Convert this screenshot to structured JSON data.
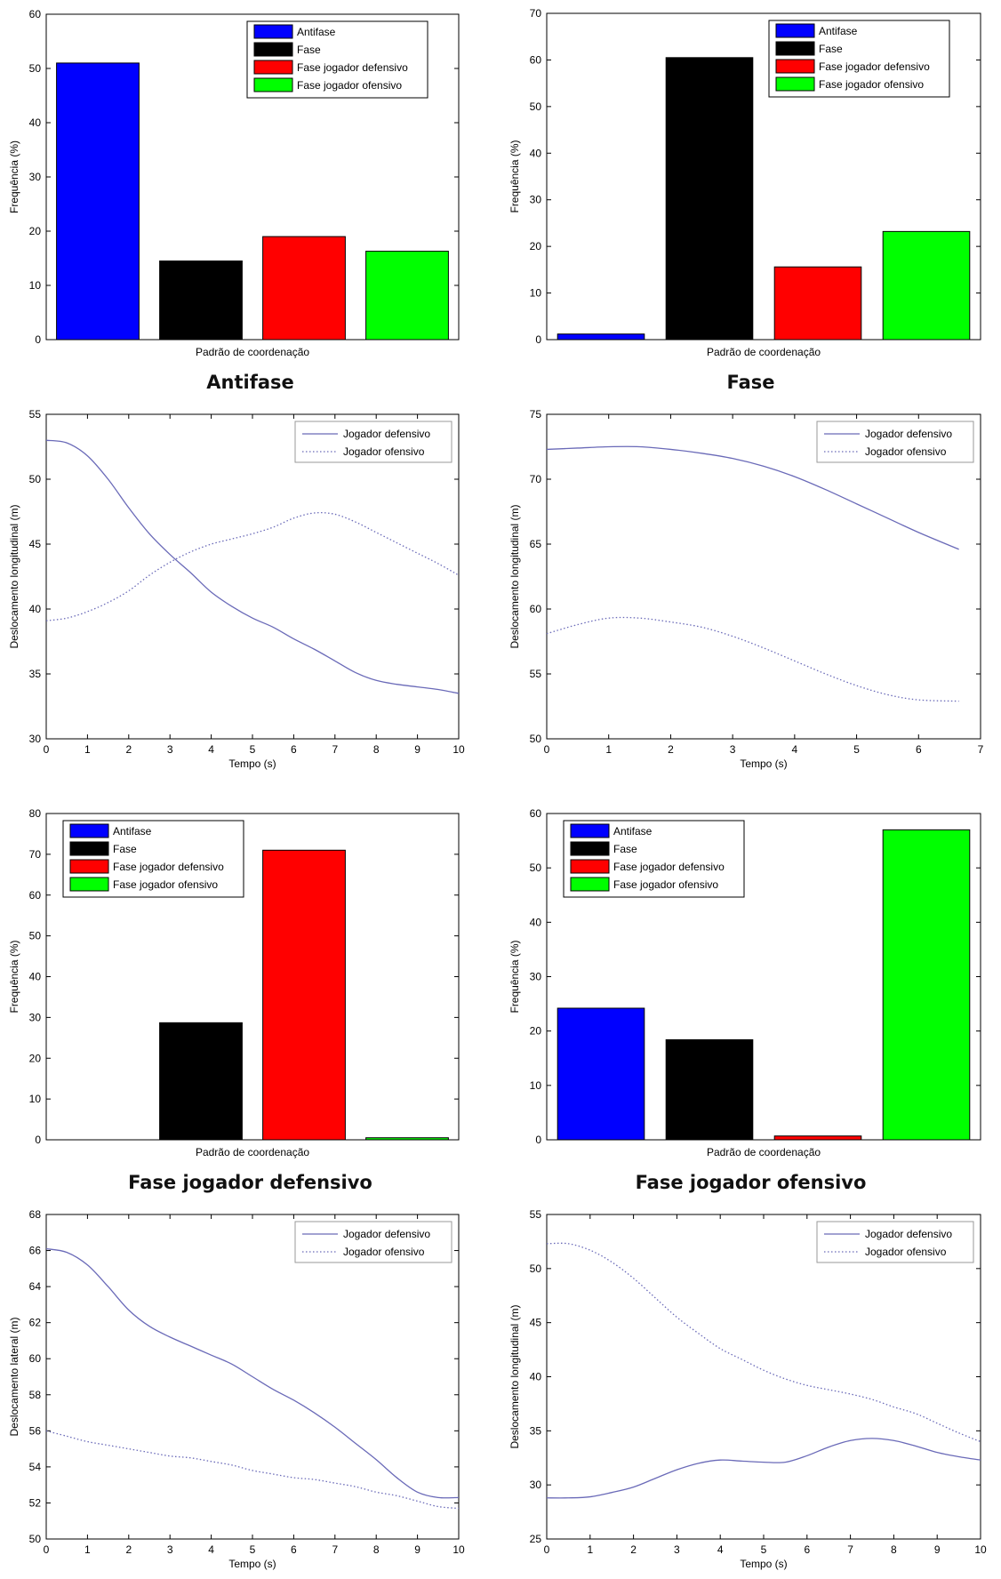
{
  "figure": {
    "captions": [
      "Antifase",
      "Fase",
      "Fase jogador defensivo",
      "Fase jogador ofensivo"
    ]
  },
  "colors": {
    "antifase": "#0000ff",
    "fase": "#000000",
    "fase_def": "#ff0000",
    "fase_ofe": "#00ff00",
    "line": "#6a6ab8",
    "axis": "#000000"
  },
  "chart_data": [
    {
      "type": "bar",
      "xlabel": "Padrão de coordenação",
      "ylabel": "Frequência (%)",
      "ylim": [
        0,
        60
      ],
      "yticks": [
        0,
        10,
        20,
        30,
        40,
        50,
        60
      ],
      "categories": [
        "Antifase",
        "Fase",
        "Fase jogador defensivo",
        "Fase jogador ofensivo"
      ],
      "values": [
        51,
        14.5,
        19,
        16.3
      ],
      "colors": [
        "#0000ff",
        "#000000",
        "#ff0000",
        "#00ff00"
      ],
      "legend": [
        "Antifase",
        "Fase",
        "Fase jogador defensivo",
        "Fase jogador ofensivo"
      ],
      "legend_position": "top-right",
      "grid": false
    },
    {
      "type": "bar",
      "xlabel": "Padrão de coordenação",
      "ylabel": "Frequência (%)",
      "ylim": [
        0,
        70
      ],
      "yticks": [
        0,
        10,
        20,
        30,
        40,
        50,
        60,
        70
      ],
      "categories": [
        "Antifase",
        "Fase",
        "Fase jogador defensivo",
        "Fase jogador ofensivo"
      ],
      "values": [
        1.2,
        60.5,
        15.6,
        23.2
      ],
      "colors": [
        "#0000ff",
        "#000000",
        "#ff0000",
        "#00ff00"
      ],
      "legend": [
        "Antifase",
        "Fase",
        "Fase jogador defensivo",
        "Fase jogador ofensivo"
      ],
      "legend_position": "top-right",
      "grid": false
    },
    {
      "type": "line",
      "xlabel": "Tempo (s)",
      "ylabel": "Deslocamento longitudinal (m)",
      "xlim": [
        0,
        10
      ],
      "ylim": [
        30,
        55
      ],
      "xticks": [
        0,
        1,
        2,
        3,
        4,
        5,
        6,
        7,
        8,
        9,
        10
      ],
      "yticks": [
        30,
        35,
        40,
        45,
        50,
        55
      ],
      "series": [
        {
          "name": "Jogador defensivo",
          "style": "solid",
          "x": [
            0,
            0.5,
            1,
            1.5,
            2,
            2.5,
            3,
            3.5,
            4,
            4.5,
            5,
            5.5,
            6,
            6.5,
            7,
            7.5,
            8,
            8.5,
            9,
            9.5,
            10
          ],
          "y": [
            53,
            52.8,
            51.8,
            50,
            47.8,
            45.8,
            44.2,
            42.8,
            41.3,
            40.2,
            39.3,
            38.6,
            37.7,
            36.9,
            36,
            35.1,
            34.5,
            34.2,
            34,
            33.8,
            33.5
          ]
        },
        {
          "name": "Jogador ofensivo",
          "style": "dotted",
          "x": [
            0,
            0.5,
            1,
            1.5,
            2,
            2.5,
            3,
            3.5,
            4,
            4.5,
            5,
            5.5,
            6,
            6.5,
            7,
            7.5,
            8,
            8.5,
            9,
            9.5,
            10
          ],
          "y": [
            39.1,
            39.3,
            39.8,
            40.5,
            41.4,
            42.6,
            43.6,
            44.4,
            45,
            45.4,
            45.8,
            46.3,
            47,
            47.4,
            47.3,
            46.7,
            45.9,
            45.1,
            44.3,
            43.5,
            42.6
          ]
        }
      ],
      "legend_position": "top-right",
      "grid": false
    },
    {
      "type": "line",
      "xlabel": "Tempo (s)",
      "ylabel": "Deslocamento longitudinal (m)",
      "xlim": [
        0,
        7
      ],
      "ylim": [
        50,
        75
      ],
      "xticks": [
        0,
        1,
        2,
        3,
        4,
        5,
        6,
        7
      ],
      "yticks": [
        50,
        55,
        60,
        65,
        70,
        75
      ],
      "series": [
        {
          "name": "Jogador defensivo",
          "style": "solid",
          "x": [
            0,
            0.5,
            1,
            1.5,
            2,
            2.5,
            3,
            3.5,
            4,
            4.5,
            5,
            5.5,
            6,
            6.65
          ],
          "y": [
            72.3,
            72.4,
            72.5,
            72.5,
            72.3,
            72.0,
            71.6,
            71.0,
            70.2,
            69.2,
            68.1,
            67.0,
            65.9,
            64.6
          ]
        },
        {
          "name": "Jogador ofensivo",
          "style": "dotted",
          "x": [
            0,
            0.5,
            1,
            1.5,
            2,
            2.5,
            3,
            3.5,
            4,
            4.5,
            5,
            5.5,
            6,
            6.65
          ],
          "y": [
            58.1,
            58.8,
            59.3,
            59.3,
            59.0,
            58.6,
            57.9,
            57.0,
            56.0,
            55.0,
            54.1,
            53.4,
            53.0,
            52.9
          ]
        }
      ],
      "legend_position": "top-right",
      "grid": false
    },
    {
      "type": "bar",
      "xlabel": "Padrão de coordenação",
      "ylabel": "Frequência (%)",
      "ylim": [
        0,
        80
      ],
      "yticks": [
        0,
        10,
        20,
        30,
        40,
        50,
        60,
        70,
        80
      ],
      "categories": [
        "Antifase",
        "Fase",
        "Fase jogador defensivo",
        "Fase jogador ofensivo"
      ],
      "values": [
        0,
        28.7,
        71,
        0.5
      ],
      "colors": [
        "#0000ff",
        "#000000",
        "#ff0000",
        "#00ff00"
      ],
      "legend": [
        "Antifase",
        "Fase",
        "Fase jogador defensivo",
        "Fase jogador ofensivo"
      ],
      "legend_position": "top-left",
      "grid": false
    },
    {
      "type": "bar",
      "xlabel": "Padrão de coordenação",
      "ylabel": "Frequência (%)",
      "ylim": [
        0,
        60
      ],
      "yticks": [
        0,
        10,
        20,
        30,
        40,
        50,
        60
      ],
      "categories": [
        "Antifase",
        "Fase",
        "Fase jogador defensivo",
        "Fase jogador ofensivo"
      ],
      "values": [
        24.2,
        18.4,
        0.7,
        57
      ],
      "colors": [
        "#0000ff",
        "#000000",
        "#ff0000",
        "#00ff00"
      ],
      "legend": [
        "Antifase",
        "Fase",
        "Fase jogador defensivo",
        "Fase jogador ofensivo"
      ],
      "legend_position": "top-left",
      "grid": false
    },
    {
      "type": "line",
      "xlabel": "Tempo (s)",
      "ylabel": "Deslocamento lateral (m)",
      "xlim": [
        0,
        10
      ],
      "ylim": [
        50,
        68
      ],
      "xticks": [
        0,
        1,
        2,
        3,
        4,
        5,
        6,
        7,
        8,
        9,
        10
      ],
      "yticks": [
        50,
        52,
        54,
        56,
        58,
        60,
        62,
        64,
        66,
        68
      ],
      "series": [
        {
          "name": "Jogador defensivo",
          "style": "solid",
          "x": [
            0,
            0.5,
            1,
            1.5,
            2,
            2.5,
            3,
            3.5,
            4,
            4.5,
            5,
            5.5,
            6,
            6.5,
            7,
            7.5,
            8,
            8.5,
            9,
            9.5,
            10
          ],
          "y": [
            66.1,
            65.9,
            65.2,
            64.0,
            62.7,
            61.8,
            61.2,
            60.7,
            60.2,
            59.7,
            59.0,
            58.3,
            57.7,
            57.0,
            56.2,
            55.3,
            54.4,
            53.4,
            52.6,
            52.3,
            52.3
          ]
        },
        {
          "name": "Jogador ofensivo",
          "style": "dotted",
          "x": [
            0,
            0.5,
            1,
            1.5,
            2,
            2.5,
            3,
            3.5,
            4,
            4.5,
            5,
            5.5,
            6,
            6.5,
            7,
            7.5,
            8,
            8.5,
            9,
            9.5,
            10
          ],
          "y": [
            56.0,
            55.7,
            55.4,
            55.2,
            55.0,
            54.8,
            54.6,
            54.5,
            54.3,
            54.1,
            53.8,
            53.6,
            53.4,
            53.3,
            53.1,
            52.9,
            52.6,
            52.4,
            52.1,
            51.8,
            51.7
          ]
        }
      ],
      "legend_position": "top-right",
      "grid": false
    },
    {
      "type": "line",
      "xlabel": "Tempo (s)",
      "ylabel": "Deslocamento longitudinal (m)",
      "xlim": [
        0,
        10
      ],
      "ylim": [
        25,
        55
      ],
      "xticks": [
        0,
        1,
        2,
        3,
        4,
        5,
        6,
        7,
        8,
        9,
        10
      ],
      "yticks": [
        25,
        30,
        35,
        40,
        45,
        50,
        55
      ],
      "series": [
        {
          "name": "Jogador defensivo",
          "style": "solid",
          "x": [
            0,
            0.5,
            1,
            1.5,
            2,
            2.5,
            3,
            3.5,
            4,
            4.5,
            5,
            5.5,
            6,
            6.5,
            7,
            7.5,
            8,
            8.5,
            9,
            9.5,
            10
          ],
          "y": [
            28.8,
            28.8,
            28.9,
            29.3,
            29.8,
            30.6,
            31.4,
            32.0,
            32.3,
            32.2,
            32.1,
            32.1,
            32.7,
            33.5,
            34.1,
            34.3,
            34.1,
            33.6,
            33.0,
            32.6,
            32.3
          ]
        },
        {
          "name": "Jogador ofensivo",
          "style": "dotted",
          "x": [
            0,
            0.5,
            1,
            1.5,
            2,
            2.5,
            3,
            3.5,
            4,
            4.5,
            5,
            5.5,
            6,
            6.5,
            7,
            7.5,
            8,
            8.5,
            9,
            9.5,
            10
          ],
          "y": [
            52.3,
            52.3,
            51.7,
            50.6,
            49.1,
            47.3,
            45.5,
            44.0,
            42.6,
            41.6,
            40.6,
            39.8,
            39.2,
            38.8,
            38.4,
            37.9,
            37.2,
            36.6,
            35.7,
            34.8,
            34.0
          ]
        }
      ],
      "legend_position": "top-right",
      "grid": false
    }
  ]
}
